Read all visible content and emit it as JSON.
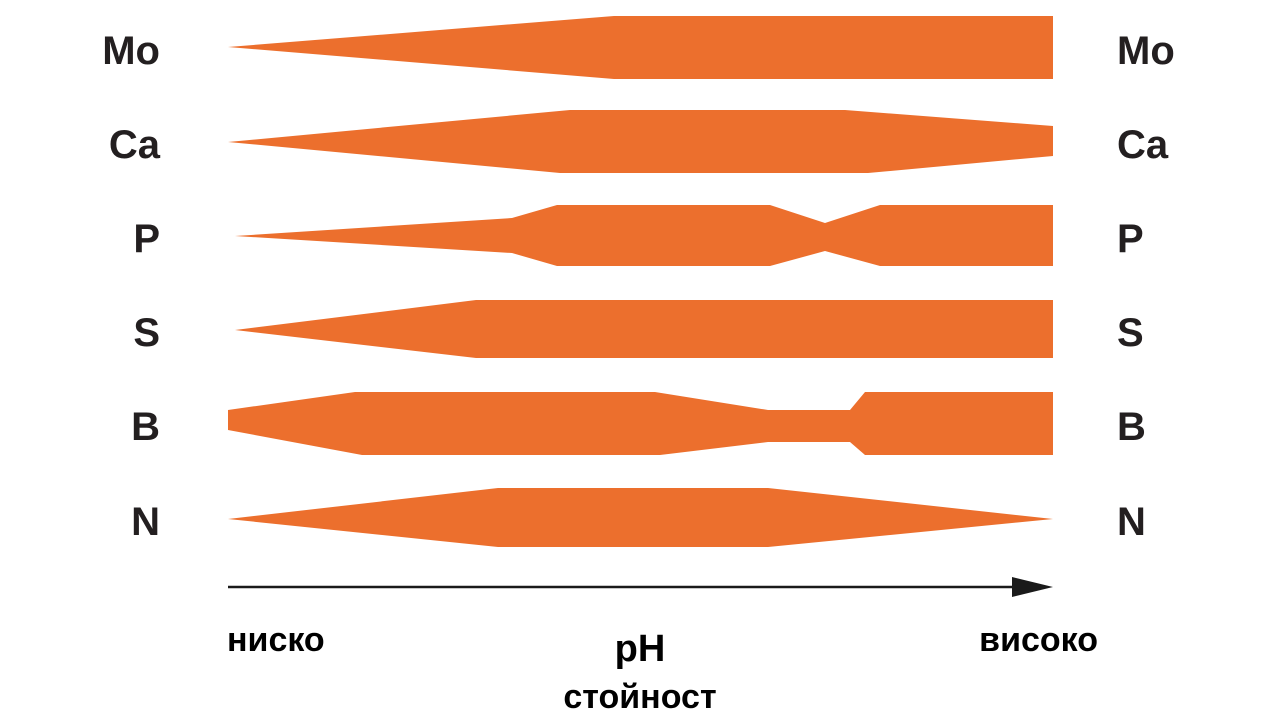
{
  "colors": {
    "band": "#ec6f2d",
    "label": "#231f20",
    "axis": "#1a1a1a"
  },
  "rows": [
    {
      "element": "Mo"
    },
    {
      "element": "Ca"
    },
    {
      "element": "P"
    },
    {
      "element": "S"
    },
    {
      "element": "B"
    },
    {
      "element": "N"
    }
  ],
  "axis": {
    "low_label": "ниско",
    "high_label": "високо",
    "title_line1": "pH",
    "title_line2": "стойност"
  }
}
